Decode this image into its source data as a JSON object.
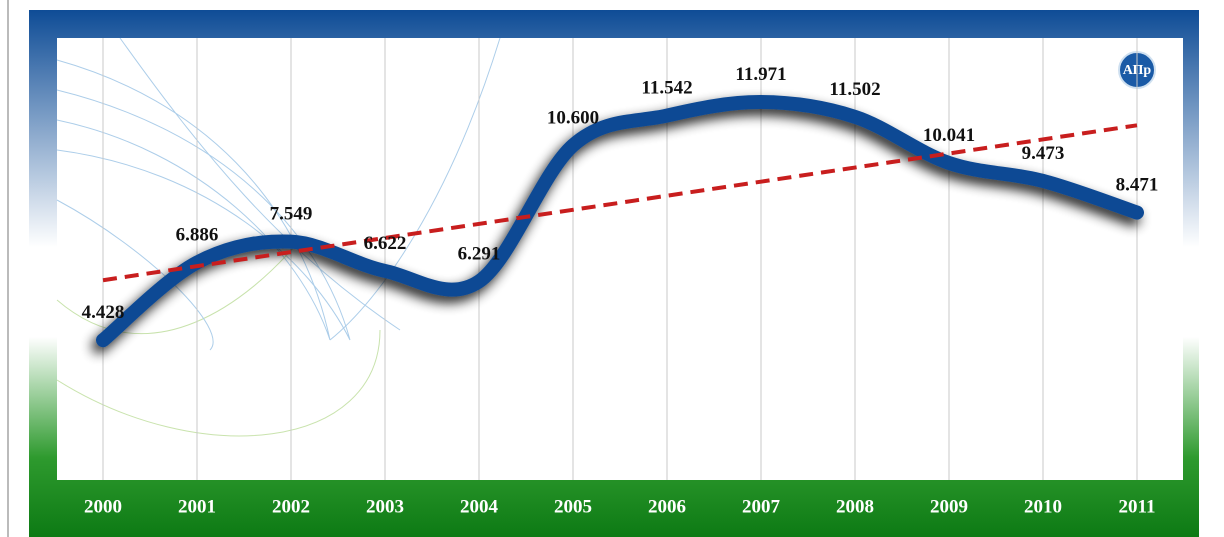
{
  "chart_data": {
    "type": "line",
    "logo": "АПр",
    "categories": [
      "2000",
      "2001",
      "2002",
      "2003",
      "2004",
      "2005",
      "2006",
      "2007",
      "2008",
      "2009",
      "2010",
      "2011"
    ],
    "series": [
      {
        "color": "#0d4a94",
        "values": [
          4.428,
          6.886,
          7.549,
          6.622,
          6.291,
          10.6,
          11.542,
          11.971,
          11.502,
          10.041,
          9.473,
          8.471
        ],
        "value_labels": [
          "4.428",
          "6.886",
          "7.549",
          "6.622",
          "6.291",
          "10.600",
          "11.542",
          "11.971",
          "11.502",
          "10.041",
          "9.473",
          "8.471"
        ]
      }
    ],
    "trendline": {
      "color": "#c81e1e",
      "style": "dashed"
    },
    "ylim": [
      0,
      14
    ],
    "grid": true
  }
}
